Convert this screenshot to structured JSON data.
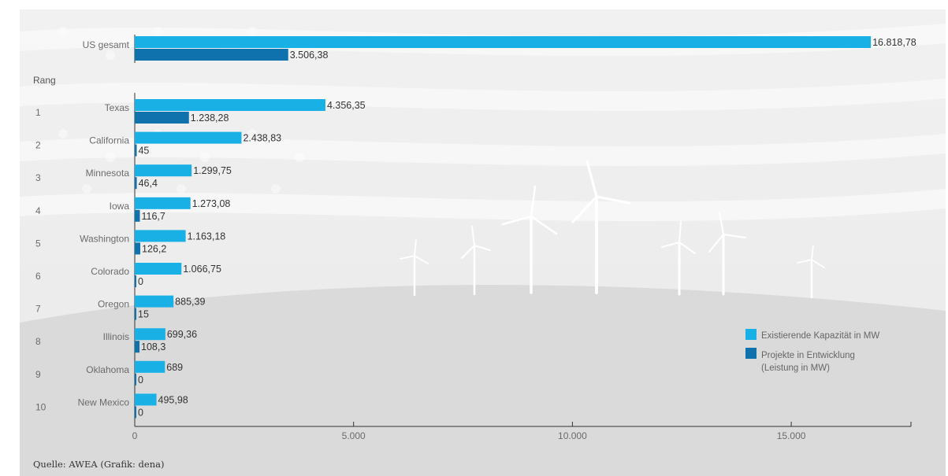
{
  "chart_data": {
    "type": "bar",
    "orientation": "horizontal",
    "rank_header": "Rang",
    "total": {
      "label": "US gesamt",
      "values": [
        16818.78,
        3506.38
      ],
      "labels": [
        "16.818,78",
        "3.506,38"
      ]
    },
    "rows": [
      {
        "rank": "1",
        "state": "Texas",
        "values": [
          4356.35,
          1238.28
        ],
        "labels": [
          "4.356,35",
          "1.238,28"
        ]
      },
      {
        "rank": "2",
        "state": "California",
        "values": [
          2438.83,
          45
        ],
        "labels": [
          "2.438,83",
          "45"
        ]
      },
      {
        "rank": "3",
        "state": "Minnesota",
        "values": [
          1299.75,
          46.4
        ],
        "labels": [
          "1.299,75",
          "46,4"
        ]
      },
      {
        "rank": "4",
        "state": "Iowa",
        "values": [
          1273.08,
          116.7
        ],
        "labels": [
          "1.273,08",
          "116,7"
        ]
      },
      {
        "rank": "5",
        "state": "Washington",
        "values": [
          1163.18,
          126.2
        ],
        "labels": [
          "1.163,18",
          "126,2"
        ]
      },
      {
        "rank": "6",
        "state": "Colorado",
        "values": [
          1066.75,
          0
        ],
        "labels": [
          "1.066,75",
          "0"
        ]
      },
      {
        "rank": "7",
        "state": "Oregon",
        "values": [
          885.39,
          15
        ],
        "labels": [
          "885,39",
          "15"
        ]
      },
      {
        "rank": "8",
        "state": "Illinois",
        "values": [
          699.36,
          108.3
        ],
        "labels": [
          "699,36",
          "108,3"
        ]
      },
      {
        "rank": "9",
        "state": "Oklahoma",
        "values": [
          689,
          0
        ],
        "labels": [
          "689",
          "0"
        ]
      },
      {
        "rank": "10",
        "state": "New Mexico",
        "values": [
          495.98,
          0
        ],
        "labels": [
          "495,98",
          "0"
        ]
      }
    ],
    "series": [
      {
        "name": "Existierende Kapazität in MW",
        "color": "#19b0e6"
      },
      {
        "name": "Projekte in Entwicklung",
        "name_line2": "(Leistung in MW)",
        "color": "#0f72ad"
      }
    ],
    "xlim": [
      0,
      17500
    ],
    "xticks": [
      0,
      5000,
      10000,
      15000
    ],
    "xtick_labels": [
      "0",
      "5.000",
      "10.000",
      "15.000"
    ],
    "legend_position": "right",
    "source": "Quelle: AWEA (Grafik: dena)"
  }
}
